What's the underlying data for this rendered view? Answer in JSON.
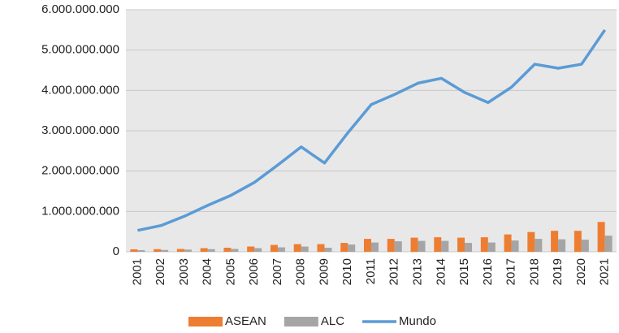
{
  "chart_data": {
    "type": "bar",
    "categories": [
      "2001",
      "2002",
      "2003",
      "2004",
      "2005",
      "2006",
      "2007",
      "2008",
      "2009",
      "2010",
      "2011",
      "2012",
      "2013",
      "2014",
      "2015",
      "2016",
      "2017",
      "2018",
      "2019",
      "2020",
      "2021"
    ],
    "series": [
      {
        "name": "ASEAN",
        "type": "bar",
        "color": "#ed7d31",
        "values": [
          60000000,
          65000000,
          70000000,
          90000000,
          100000000,
          130000000,
          170000000,
          190000000,
          190000000,
          220000000,
          320000000,
          320000000,
          350000000,
          360000000,
          350000000,
          360000000,
          430000000,
          490000000,
          520000000,
          520000000,
          740000000
        ]
      },
      {
        "name": "ALC",
        "type": "bar",
        "color": "#a5a5a5",
        "values": [
          40000000,
          45000000,
          55000000,
          65000000,
          70000000,
          90000000,
          110000000,
          130000000,
          100000000,
          180000000,
          230000000,
          260000000,
          270000000,
          270000000,
          220000000,
          230000000,
          280000000,
          320000000,
          310000000,
          300000000,
          400000000
        ]
      },
      {
        "name": "Mundo",
        "type": "line",
        "color": "#5b9bd5",
        "values": [
          530000000,
          650000000,
          880000000,
          1150000000,
          1400000000,
          1720000000,
          2150000000,
          2600000000,
          2200000000,
          2950000000,
          3650000000,
          3900000000,
          4180000000,
          4300000000,
          3950000000,
          3700000000,
          4080000000,
          4650000000,
          4550000000,
          4650000000,
          5500000000
        ]
      }
    ],
    "ylim": [
      0,
      6000000000
    ],
    "yticks": [
      0,
      {
        "value": 1000000000,
        "label": "1.000.000.000"
      },
      {
        "value": 2000000000,
        "label": "2.000.000.000"
      },
      {
        "value": 3000000000,
        "label": "3.000.000.000"
      },
      {
        "value": 4000000000,
        "label": "4.000.000.000"
      },
      {
        "value": 5000000000,
        "label": "5.000.000.000"
      },
      {
        "value": 6000000000,
        "label": "6.000.000.000"
      }
    ],
    "grid": true,
    "legend": "bottom"
  }
}
